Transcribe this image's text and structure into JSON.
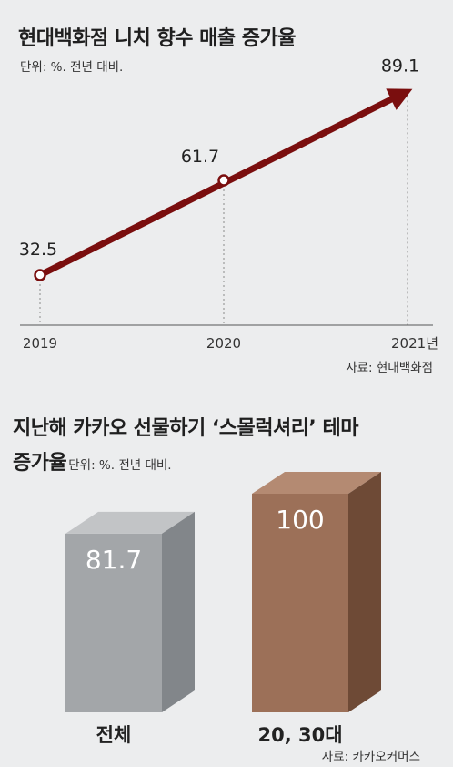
{
  "chart_data": [
    {
      "type": "line",
      "title": "현대백화점 니치 향수 매출 증가율",
      "unit": "단위: %. 전년 대비.",
      "source": "자료: 현대백화점",
      "x": [
        "2019",
        "2020",
        "2021년"
      ],
      "values": [
        32.5,
        61.7,
        89.1
      ],
      "value_labels": [
        "32.5",
        "61.7",
        "89.1"
      ],
      "colors": {
        "line": "#7a0e0e",
        "grid": "#8a8a8a"
      },
      "grid": true
    },
    {
      "type": "bar",
      "title_line1": "지난해 카카오 선물하기 ‘스몰럭셔리’ 테마",
      "title_line2": "증가율",
      "unit": "단위: %. 전년 대비.",
      "source": "자료: 카카오커머스",
      "categories": [
        "전체",
        "20, 30대"
      ],
      "values": [
        81.7,
        100
      ],
      "value_labels": [
        "81.7",
        "100"
      ],
      "colors": {
        "bar1": "#a3a6a9",
        "bar2": "#9c7058"
      }
    }
  ]
}
